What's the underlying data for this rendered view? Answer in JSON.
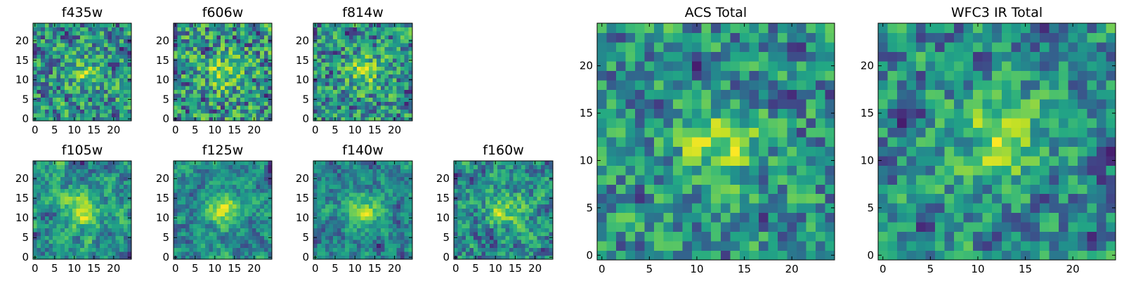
{
  "chart_data": [
    {
      "type": "heatmap",
      "title": "f435w",
      "colormap": "viridis",
      "grid_size": 25,
      "seed": 11,
      "smooth": 0.15,
      "center_boost": 0.35,
      "xticks": [
        0,
        5,
        10,
        15,
        20
      ],
      "yticks": [
        0,
        5,
        10,
        15,
        20
      ],
      "xlim": [
        0,
        24
      ],
      "ylim": [
        0,
        24
      ]
    },
    {
      "type": "heatmap",
      "title": "f606w",
      "colormap": "viridis",
      "grid_size": 25,
      "seed": 23,
      "smooth": 0.15,
      "center_boost": 0.4,
      "xticks": [
        0,
        5,
        10,
        15,
        20
      ],
      "yticks": [
        0,
        5,
        10,
        15,
        20
      ],
      "xlim": [
        0,
        24
      ],
      "ylim": [
        0,
        24
      ]
    },
    {
      "type": "heatmap",
      "title": "f814w",
      "colormap": "viridis",
      "grid_size": 25,
      "seed": 37,
      "smooth": 0.15,
      "center_boost": 0.45,
      "xticks": [
        0,
        5,
        10,
        15,
        20
      ],
      "yticks": [
        0,
        5,
        10,
        15,
        20
      ],
      "xlim": [
        0,
        24
      ],
      "ylim": [
        0,
        24
      ]
    },
    {
      "type": "heatmap",
      "title": "f105w",
      "colormap": "viridis",
      "grid_size": 25,
      "seed": 41,
      "smooth": 0.6,
      "center_boost": 0.55,
      "xticks": [
        0,
        5,
        10,
        15,
        20
      ],
      "yticks": [
        0,
        5,
        10,
        15,
        20
      ],
      "xlim": [
        0,
        24
      ],
      "ylim": [
        0,
        24
      ]
    },
    {
      "type": "heatmap",
      "title": "f125w",
      "colormap": "viridis",
      "grid_size": 25,
      "seed": 53,
      "smooth": 0.6,
      "center_boost": 0.55,
      "xticks": [
        0,
        5,
        10,
        15,
        20
      ],
      "yticks": [
        0,
        5,
        10,
        15,
        20
      ],
      "xlim": [
        0,
        24
      ],
      "ylim": [
        0,
        24
      ]
    },
    {
      "type": "heatmap",
      "title": "f140w",
      "colormap": "viridis",
      "grid_size": 25,
      "seed": 67,
      "smooth": 0.55,
      "center_boost": 0.55,
      "xticks": [
        0,
        5,
        10,
        15,
        20
      ],
      "yticks": [
        0,
        5,
        10,
        15,
        20
      ],
      "xlim": [
        0,
        24
      ],
      "ylim": [
        0,
        24
      ]
    },
    {
      "type": "heatmap",
      "title": "f160w",
      "colormap": "viridis",
      "grid_size": 25,
      "seed": 79,
      "smooth": 0.45,
      "center_boost": 0.5,
      "xticks": [
        0,
        5,
        10,
        15,
        20
      ],
      "yticks": [
        0,
        5,
        10,
        15,
        20
      ],
      "xlim": [
        0,
        24
      ],
      "ylim": [
        0,
        24
      ]
    },
    {
      "type": "heatmap",
      "title": "ACS Total",
      "colormap": "viridis",
      "grid_size": 25,
      "seed": 97,
      "smooth": 0.35,
      "center_boost": 0.45,
      "xticks": [
        0,
        5,
        10,
        15,
        20
      ],
      "yticks": [
        0,
        5,
        10,
        15,
        20
      ],
      "xlim": [
        0,
        24
      ],
      "ylim": [
        0,
        24
      ]
    },
    {
      "type": "heatmap",
      "title": "WFC3 IR Total",
      "colormap": "viridis",
      "grid_size": 25,
      "seed": 113,
      "smooth": 0.45,
      "center_boost": 0.5,
      "xticks": [
        0,
        5,
        10,
        15,
        20
      ],
      "yticks": [
        0,
        5,
        10,
        15,
        20
      ],
      "xlim": [
        0,
        24
      ],
      "ylim": [
        0,
        24
      ]
    }
  ]
}
